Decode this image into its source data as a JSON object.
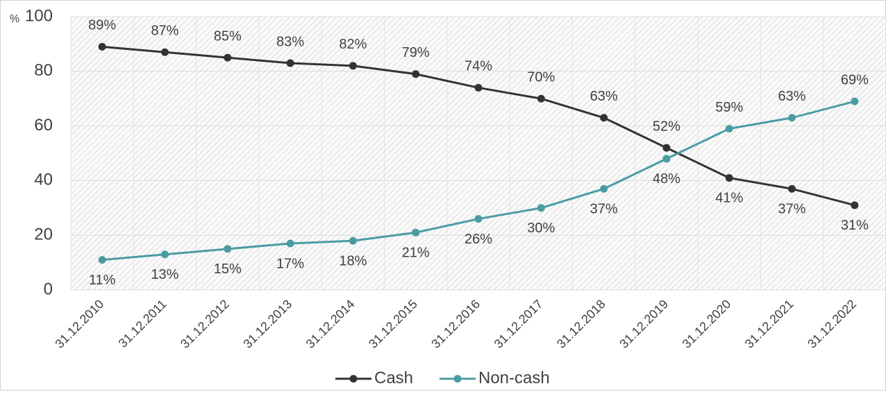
{
  "chart_data": {
    "type": "line",
    "y_label": "%",
    "categories": [
      "31.12.2010",
      "31.12.2011",
      "31.12.2012",
      "31.12.2013",
      "31.12.2014",
      "31.12.2015",
      "31.12.2016",
      "31.12.2017",
      "31.12.2018",
      "31.12.2019",
      "31.12.2020",
      "31.12.2021",
      "31.12.2022"
    ],
    "series": [
      {
        "name": "Cash",
        "color": "#333333",
        "values": [
          89,
          87,
          85,
          83,
          82,
          79,
          74,
          70,
          63,
          52,
          41,
          37,
          31
        ],
        "value_labels": [
          "89%",
          "87%",
          "85%",
          "83%",
          "82%",
          "79%",
          "74%",
          "70%",
          "63%",
          "52%",
          "41%",
          "37%",
          "31%"
        ]
      },
      {
        "name": "Non-cash",
        "color": "#4a9ca3",
        "values": [
          11,
          13,
          15,
          17,
          18,
          21,
          26,
          30,
          37,
          48,
          59,
          63,
          69
        ],
        "value_labels": [
          "11%",
          "13%",
          "15%",
          "17%",
          "18%",
          "21%",
          "26%",
          "30%",
          "37%",
          "48%",
          "59%",
          "63%",
          "69%"
        ]
      }
    ],
    "ylim": [
      0,
      100
    ],
    "yticks": [
      0,
      20,
      40,
      60,
      80,
      100
    ],
    "grid": true,
    "legend": "bottom"
  }
}
